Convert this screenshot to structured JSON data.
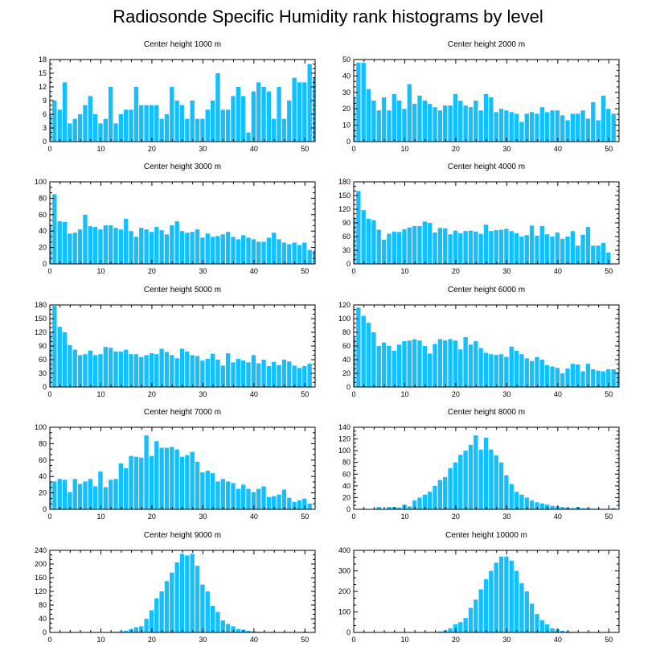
{
  "title": "Radiosonde Specific Humidity rank histograms by level",
  "bar_color": "#14bfff",
  "chart_data": [
    {
      "type": "bar",
      "title": "Center height 1000 m",
      "xlim": [
        0,
        52
      ],
      "ylim": [
        0,
        18
      ],
      "xticks": [
        0,
        10,
        20,
        30,
        40,
        50
      ],
      "yticks": [
        0,
        3,
        6,
        9,
        12,
        15,
        18
      ],
      "values": [
        6,
        9,
        7,
        13,
        4,
        5,
        6,
        8,
        10,
        6,
        4,
        5,
        12,
        4,
        6,
        7,
        7,
        12,
        8,
        8,
        8,
        8,
        5,
        6,
        12,
        9,
        8,
        5,
        9,
        5,
        5,
        7,
        9,
        15,
        7,
        7,
        10,
        12,
        10,
        2,
        11,
        13,
        12,
        11,
        5,
        12,
        5,
        9,
        14,
        13,
        13,
        17,
        14
      ]
    },
    {
      "type": "bar",
      "title": "Center height 2000 m",
      "xlim": [
        0,
        52
      ],
      "ylim": [
        0,
        50
      ],
      "xticks": [
        0,
        10,
        20,
        30,
        40,
        50
      ],
      "yticks": [
        0,
        10,
        20,
        30,
        40,
        50
      ],
      "values": [
        27,
        48,
        48,
        32,
        25,
        19,
        27,
        19,
        29,
        25,
        20,
        35,
        23,
        28,
        25,
        23,
        21,
        19,
        22,
        22,
        29,
        25,
        22,
        21,
        25,
        19,
        29,
        27,
        18,
        20,
        19,
        18,
        17,
        12,
        17,
        18,
        17,
        21,
        18,
        19,
        19,
        16,
        13,
        17,
        17,
        19,
        14,
        24,
        13,
        28,
        20,
        17
      ]
    },
    {
      "type": "bar",
      "title": "Center height 3000 m",
      "xlim": [
        0,
        52
      ],
      "ylim": [
        0,
        100
      ],
      "xticks": [
        0,
        10,
        20,
        30,
        40,
        50
      ],
      "yticks": [
        0,
        20,
        40,
        60,
        80,
        100
      ],
      "values": [
        48,
        85,
        52,
        51,
        37,
        38,
        42,
        60,
        46,
        45,
        42,
        47,
        47,
        44,
        42,
        55,
        40,
        33,
        44,
        42,
        39,
        45,
        41,
        36,
        47,
        52,
        40,
        38,
        39,
        42,
        32,
        37,
        33,
        34,
        36,
        39,
        33,
        30,
        35,
        32,
        30,
        27,
        27,
        32,
        38,
        30,
        26,
        24,
        26,
        23,
        26,
        17,
        16
      ]
    },
    {
      "type": "bar",
      "title": "Center height 4000 m",
      "xlim": [
        0,
        52
      ],
      "ylim": [
        0,
        180
      ],
      "xticks": [
        0,
        10,
        20,
        30,
        40,
        50
      ],
      "yticks": [
        0,
        30,
        60,
        90,
        120,
        150,
        180
      ],
      "values": [
        100,
        160,
        118,
        99,
        96,
        75,
        53,
        66,
        71,
        70,
        76,
        80,
        83,
        83,
        93,
        90,
        69,
        79,
        78,
        65,
        73,
        67,
        72,
        73,
        71,
        66,
        86,
        72,
        74,
        75,
        77,
        72,
        67,
        60,
        63,
        84,
        62,
        83,
        65,
        60,
        69,
        55,
        60,
        72,
        40,
        64,
        81,
        40,
        40,
        46,
        25
      ]
    },
    {
      "type": "bar",
      "title": "Center height 5000 m",
      "xlim": [
        0,
        52
      ],
      "ylim": [
        0,
        180
      ],
      "xticks": [
        0,
        10,
        20,
        30,
        40,
        50
      ],
      "yticks": [
        0,
        30,
        60,
        90,
        120,
        150,
        180
      ],
      "values": [
        120,
        178,
        132,
        120,
        92,
        82,
        70,
        72,
        80,
        70,
        72,
        88,
        86,
        78,
        78,
        82,
        72,
        72,
        66,
        70,
        74,
        72,
        84,
        77,
        70,
        63,
        84,
        78,
        70,
        68,
        58,
        62,
        73,
        60,
        47,
        74,
        54,
        62,
        58,
        54,
        70,
        52,
        60,
        46,
        55,
        48,
        60,
        56,
        47,
        42,
        46,
        51
      ]
    },
    {
      "type": "bar",
      "title": "Center height 6000 m",
      "xlim": [
        0,
        52
      ],
      "ylim": [
        0,
        120
      ],
      "xticks": [
        0,
        10,
        20,
        30,
        40,
        50
      ],
      "yticks": [
        0,
        20,
        40,
        60,
        80,
        100,
        120
      ],
      "values": [
        72,
        116,
        104,
        94,
        80,
        60,
        65,
        60,
        53,
        62,
        67,
        68,
        70,
        68,
        60,
        49,
        63,
        70,
        68,
        70,
        68,
        55,
        73,
        62,
        67,
        57,
        50,
        48,
        47,
        48,
        44,
        59,
        53,
        48,
        42,
        38,
        44,
        40,
        32,
        30,
        28,
        20,
        27,
        34,
        33,
        23,
        34,
        26,
        24,
        23,
        26,
        26,
        22
      ]
    },
    {
      "type": "bar",
      "title": "Center height 7000 m",
      "xlim": [
        0,
        52
      ],
      "ylim": [
        0,
        100
      ],
      "xticks": [
        0,
        10,
        20,
        30,
        40,
        50
      ],
      "yticks": [
        0,
        20,
        40,
        60,
        80,
        100
      ],
      "values": [
        34,
        34,
        37,
        36,
        21,
        37,
        31,
        34,
        37,
        28,
        46,
        27,
        36,
        37,
        56,
        50,
        65,
        64,
        63,
        90,
        65,
        83,
        75,
        75,
        76,
        73,
        64,
        66,
        70,
        58,
        45,
        47,
        44,
        34,
        37,
        34,
        32,
        25,
        30,
        25,
        21,
        25,
        28,
        15,
        16,
        18,
        24,
        14,
        9,
        11,
        13,
        7
      ]
    },
    {
      "type": "bar",
      "title": "Center height 8000 m",
      "xlim": [
        0,
        52
      ],
      "ylim": [
        0,
        140
      ],
      "xticks": [
        0,
        10,
        20,
        30,
        40,
        50
      ],
      "yticks": [
        0,
        20,
        40,
        60,
        80,
        100,
        120,
        140
      ],
      "values": [
        0,
        0,
        0,
        0,
        0,
        4,
        0,
        4,
        4,
        3,
        8,
        5,
        15,
        20,
        25,
        30,
        40,
        50,
        55,
        70,
        80,
        93,
        100,
        110,
        126,
        102,
        122,
        102,
        92,
        80,
        58,
        43,
        30,
        25,
        20,
        15,
        12,
        10,
        8,
        6,
        5,
        4,
        3,
        2,
        4,
        2,
        2,
        1,
        1,
        0,
        0,
        2,
        0
      ]
    },
    {
      "type": "bar",
      "title": "Center height 9000 m",
      "xlim": [
        0,
        52
      ],
      "ylim": [
        0,
        240
      ],
      "xticks": [
        0,
        10,
        20,
        30,
        40,
        50
      ],
      "yticks": [
        0,
        40,
        80,
        120,
        160,
        200,
        240
      ],
      "values": [
        0,
        0,
        0,
        0,
        0,
        0,
        0,
        0,
        0,
        0,
        0,
        0,
        0,
        2,
        3,
        5,
        10,
        15,
        18,
        40,
        65,
        100,
        120,
        150,
        175,
        205,
        230,
        225,
        230,
        195,
        140,
        120,
        78,
        60,
        35,
        25,
        18,
        10,
        8,
        5,
        3,
        2,
        1,
        1,
        1,
        1,
        0,
        0,
        0,
        0,
        2,
        0
      ]
    },
    {
      "type": "bar",
      "title": "Center height 10000 m",
      "xlim": [
        0,
        52
      ],
      "ylim": [
        0,
        400
      ],
      "xticks": [
        0,
        10,
        20,
        30,
        40,
        50
      ],
      "yticks": [
        0,
        100,
        200,
        300,
        400
      ],
      "values": [
        0,
        0,
        0,
        0,
        0,
        0,
        0,
        0,
        0,
        0,
        0,
        0,
        0,
        0,
        0,
        0,
        2,
        5,
        10,
        20,
        40,
        50,
        70,
        120,
        160,
        210,
        260,
        300,
        340,
        370,
        370,
        350,
        300,
        240,
        200,
        140,
        90,
        60,
        40,
        20,
        15,
        8,
        5,
        3,
        2,
        1,
        0,
        0,
        0,
        0,
        0,
        0
      ]
    }
  ]
}
